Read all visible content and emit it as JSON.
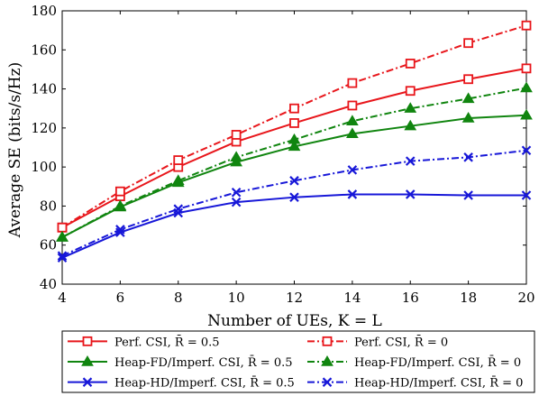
{
  "chart_data": {
    "type": "line",
    "xlabel": "Number of UEs, K = L",
    "ylabel": "Average SE (bits/s/Hz)",
    "xlim": [
      4,
      20
    ],
    "ylim": [
      40,
      180
    ],
    "xticks": [
      4,
      6,
      8,
      10,
      12,
      14,
      16,
      18,
      20
    ],
    "yticks": [
      40,
      60,
      80,
      100,
      120,
      140,
      160,
      180
    ],
    "grid": false,
    "legend_position": "below",
    "x": [
      4,
      6,
      8,
      10,
      12,
      14,
      16,
      18,
      20
    ],
    "series": [
      {
        "name": "Perf. CSI, R̄ = 0.5",
        "color": "#e8161b",
        "dash": "solid",
        "marker": "square",
        "values": [
          69,
          85,
          100,
          113,
          122.5,
          131.5,
          139,
          145,
          150.5
        ]
      },
      {
        "name": "Perf. CSI, R̄ = 0",
        "color": "#e8161b",
        "dash": "dashdot",
        "marker": "square",
        "values": [
          69,
          87.5,
          103.5,
          116.5,
          130,
          143,
          153,
          163.5,
          172.5
        ]
      },
      {
        "name": "Heap-FD/Imperf. CSI, R̄ = 0.5",
        "color": "#10850f",
        "dash": "solid",
        "marker": "triangle",
        "values": [
          64,
          79.5,
          92,
          102.5,
          110.5,
          117,
          121,
          125,
          126.5
        ]
      },
      {
        "name": "Heap-FD/Imperf. CSI, R̄ = 0",
        "color": "#10850f",
        "dash": "dashdot",
        "marker": "triangle",
        "values": [
          64,
          80,
          93,
          105,
          114,
          123.5,
          130,
          135,
          140.5
        ]
      },
      {
        "name": "Heap-HD/Imperf. CSI, R̄ = 0.5",
        "color": "#1717d8",
        "dash": "solid",
        "marker": "x",
        "values": [
          53.5,
          66.5,
          76.5,
          82,
          84.5,
          86,
          86,
          85.5,
          85.5
        ]
      },
      {
        "name": "Heap-HD/Imperf. CSI, R̄ = 0",
        "color": "#1717d8",
        "dash": "dashdot",
        "marker": "x",
        "values": [
          54.5,
          68,
          78.5,
          87,
          93,
          98.5,
          103,
          105,
          108.5
        ]
      }
    ]
  }
}
